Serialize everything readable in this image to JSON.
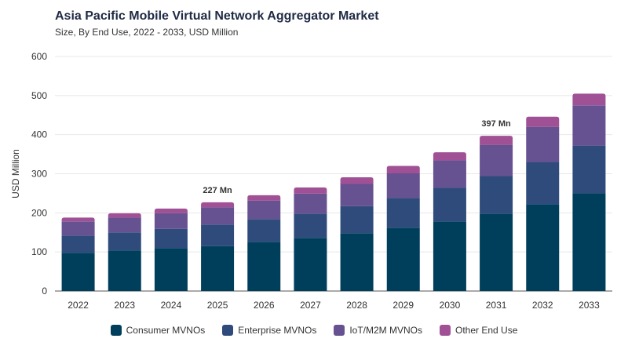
{
  "chart_data": {
    "type": "bar",
    "stacked": true,
    "title": "Asia Pacific Mobile Virtual Network Aggregator Market",
    "subtitle": "Size, By End Use, 2022 - 2033, USD Million",
    "xlabel": "",
    "ylabel": "USD Million",
    "ylim": [
      0,
      600
    ],
    "yticks": [
      0,
      100,
      200,
      300,
      400,
      500,
      600
    ],
    "grid": true,
    "legend_position": "bottom",
    "categories": [
      "2022",
      "2023",
      "2024",
      "2025",
      "2026",
      "2027",
      "2028",
      "2029",
      "2030",
      "2031",
      "2032",
      "2033"
    ],
    "series": [
      {
        "name": "Consumer MVNOs",
        "color": "#003f5c",
        "values": [
          98,
          104,
          110,
          115,
          126,
          136,
          148,
          162,
          178,
          198,
          222,
          250
        ]
      },
      {
        "name": "Enterprise MVNOs",
        "color": "#2f4b7c",
        "values": [
          44,
          46,
          49,
          55,
          58,
          62,
          69,
          76,
          86,
          96,
          108,
          122
        ]
      },
      {
        "name": "IoT/M2M MVNOs",
        "color": "#665191",
        "values": [
          36,
          38,
          40,
          44,
          47,
          51,
          57,
          63,
          70,
          80,
          90,
          103
        ]
      },
      {
        "name": "Other End Use",
        "color": "#a05195",
        "values": [
          10,
          11,
          12,
          13,
          14,
          16,
          17,
          19,
          21,
          23,
          26,
          30
        ]
      }
    ],
    "annotations": [
      {
        "category": "2025",
        "text": "227 Mn"
      },
      {
        "category": "2031",
        "text": "397 Mn"
      }
    ]
  }
}
